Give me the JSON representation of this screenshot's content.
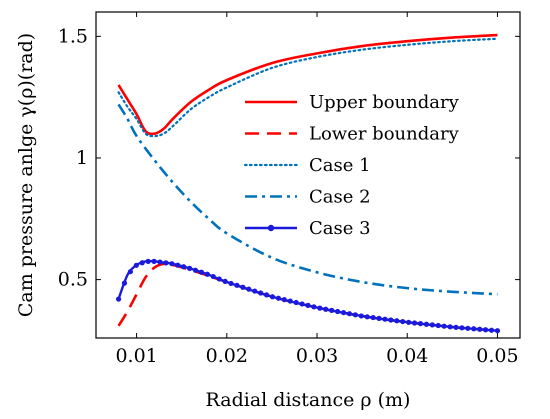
{
  "chart_data": {
    "type": "line",
    "xlabel": "Radial distance ρ (m)",
    "ylabel": "Cam pressure anlge γ(ρ)(rad)",
    "xlim": [
      0.0055,
      0.0525
    ],
    "ylim": [
      0.26,
      1.6
    ],
    "xticks": [
      0.01,
      0.02,
      0.03,
      0.04,
      0.05
    ],
    "xtick_labels": [
      "0.01",
      "0.02",
      "0.03",
      "0.04",
      "0.05"
    ],
    "yticks": [
      0.5,
      1,
      1.5
    ],
    "ytick_labels": [
      "0.5",
      "1",
      "1.5"
    ],
    "grid": false,
    "legend_position": "top-right",
    "series": [
      {
        "name": "Upper boundary",
        "color": "#ff0000",
        "style": "solid",
        "x": [
          0.008,
          0.009,
          0.01,
          0.011,
          0.012,
          0.013,
          0.014,
          0.016,
          0.018,
          0.02,
          0.025,
          0.03,
          0.035,
          0.04,
          0.045,
          0.05
        ],
        "y": [
          1.3,
          1.24,
          1.18,
          1.11,
          1.1,
          1.12,
          1.16,
          1.23,
          1.28,
          1.32,
          1.39,
          1.43,
          1.46,
          1.48,
          1.495,
          1.505
        ]
      },
      {
        "name": "Lower boundary",
        "color": "#ff0000",
        "style": "dashed",
        "x": [
          0.008,
          0.009,
          0.01,
          0.011,
          0.012,
          0.013,
          0.014,
          0.016,
          0.018,
          0.02,
          0.025,
          0.03,
          0.035,
          0.04,
          0.045,
          0.05
        ],
        "y": [
          0.31,
          0.37,
          0.44,
          0.51,
          0.55,
          0.565,
          0.56,
          0.54,
          0.515,
          0.49,
          0.43,
          0.385,
          0.35,
          0.325,
          0.305,
          0.29
        ]
      },
      {
        "name": "Case 1",
        "color": "#0072bd",
        "style": "dotted",
        "x": [
          0.008,
          0.009,
          0.01,
          0.011,
          0.012,
          0.013,
          0.014,
          0.016,
          0.018,
          0.02,
          0.025,
          0.03,
          0.035,
          0.04,
          0.045,
          0.05
        ],
        "y": [
          1.27,
          1.21,
          1.16,
          1.1,
          1.09,
          1.1,
          1.13,
          1.2,
          1.25,
          1.29,
          1.37,
          1.415,
          1.445,
          1.465,
          1.48,
          1.49
        ]
      },
      {
        "name": "Case 2",
        "color": "#0072bd",
        "style": "dashdot",
        "x": [
          0.008,
          0.009,
          0.01,
          0.012,
          0.014,
          0.016,
          0.018,
          0.02,
          0.025,
          0.03,
          0.035,
          0.04,
          0.045,
          0.05
        ],
        "y": [
          1.22,
          1.16,
          1.09,
          0.99,
          0.9,
          0.82,
          0.75,
          0.69,
          0.59,
          0.53,
          0.49,
          0.465,
          0.45,
          0.44
        ]
      },
      {
        "name": "Case 3",
        "color": "#1a1adc",
        "style": "solid-marker",
        "x": [
          0.008,
          0.009,
          0.01,
          0.011,
          0.012,
          0.013,
          0.014,
          0.016,
          0.018,
          0.02,
          0.025,
          0.03,
          0.035,
          0.04,
          0.045,
          0.05
        ],
        "y": [
          0.42,
          0.52,
          0.56,
          0.575,
          0.575,
          0.57,
          0.565,
          0.545,
          0.52,
          0.49,
          0.43,
          0.385,
          0.35,
          0.325,
          0.305,
          0.29
        ]
      }
    ]
  }
}
